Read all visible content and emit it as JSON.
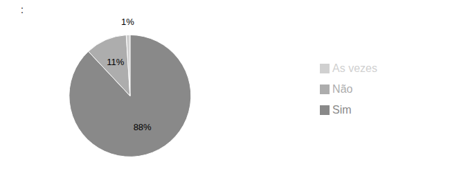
{
  "chart_data": {
    "type": "pie",
    "title": ":",
    "categories": [
      "Sim",
      "Não",
      "As vezes"
    ],
    "values": [
      88,
      11,
      1
    ],
    "value_labels": [
      "88%",
      "11%",
      "1%"
    ],
    "colors": [
      "#898989",
      "#ADADAD",
      "#D0D0D0"
    ],
    "data_labels": true,
    "legend": "right"
  }
}
